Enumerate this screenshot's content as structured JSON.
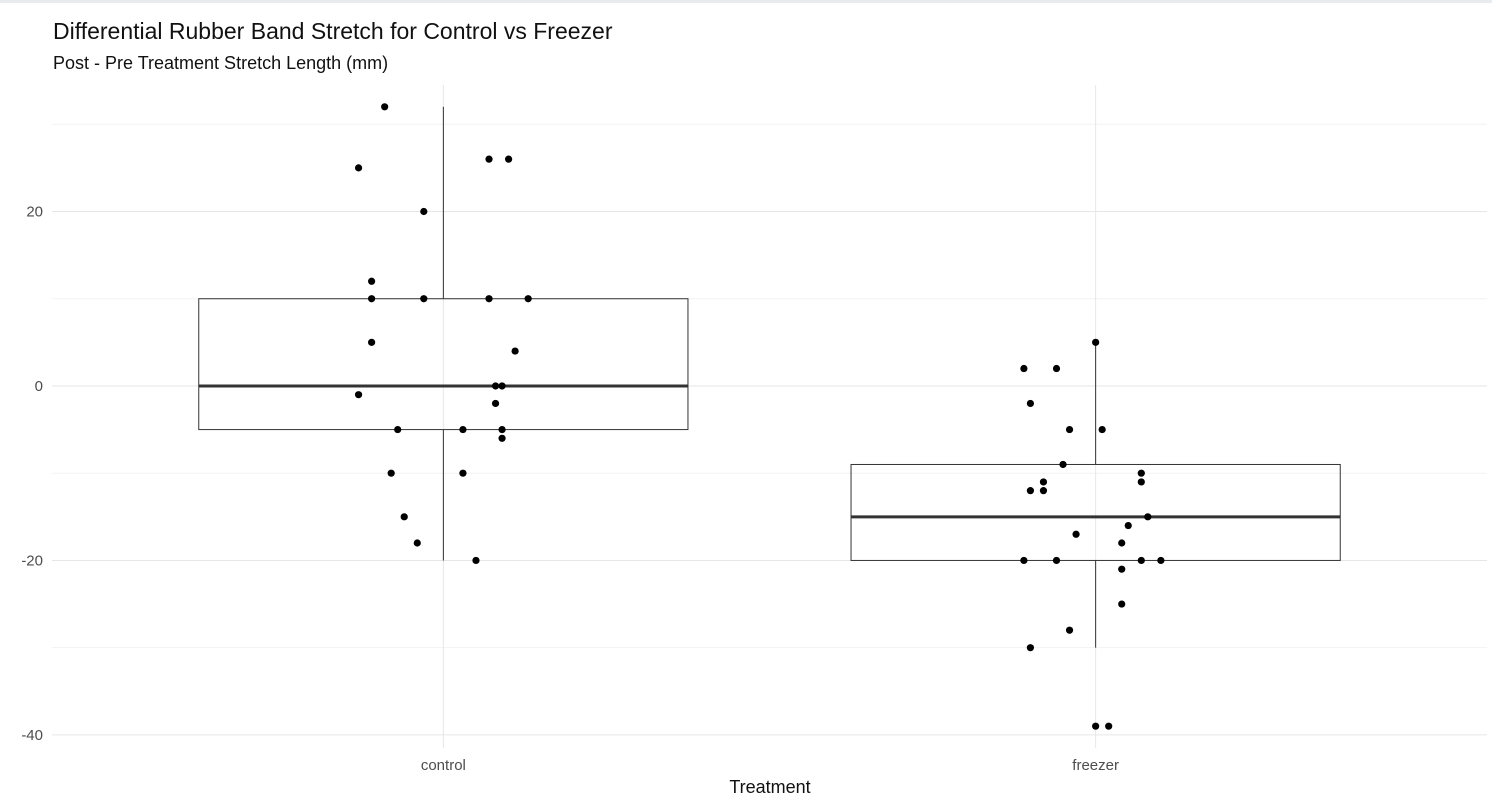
{
  "chart_data": {
    "type": "box",
    "title": "Differential Rubber Band Stretch for Control vs Freezer",
    "subtitle": "Post - Pre Treatment Stretch Length (mm)",
    "xlabel": "Treatment",
    "ylabel": "",
    "categories": [
      "control",
      "freezer"
    ],
    "ylim": [
      -41.5,
      34.5
    ],
    "yticks": [
      -40,
      -20,
      0,
      20
    ],
    "grid": true,
    "legend": "none",
    "boxes": [
      {
        "category": "control",
        "lower_whisker": -20,
        "q1": -5,
        "median": 0,
        "q3": 10,
        "upper_whisker": 32
      },
      {
        "category": "freezer",
        "lower_whisker": -30,
        "q1": -20,
        "median": -15,
        "q3": -9,
        "upper_whisker": 5
      }
    ],
    "points": [
      {
        "category": "control",
        "jitter": -0.09,
        "y": 32
      },
      {
        "category": "control",
        "jitter": -0.13,
        "y": 25
      },
      {
        "category": "control",
        "jitter": 0.07,
        "y": 26
      },
      {
        "category": "control",
        "jitter": 0.1,
        "y": 26
      },
      {
        "category": "control",
        "jitter": -0.03,
        "y": 20
      },
      {
        "category": "control",
        "jitter": -0.11,
        "y": 12
      },
      {
        "category": "control",
        "jitter": -0.11,
        "y": 10
      },
      {
        "category": "control",
        "jitter": -0.03,
        "y": 10
      },
      {
        "category": "control",
        "jitter": 0.07,
        "y": 10
      },
      {
        "category": "control",
        "jitter": 0.13,
        "y": 10
      },
      {
        "category": "control",
        "jitter": -0.11,
        "y": 5
      },
      {
        "category": "control",
        "jitter": 0.11,
        "y": 4
      },
      {
        "category": "control",
        "jitter": 0.08,
        "y": 0
      },
      {
        "category": "control",
        "jitter": 0.09,
        "y": 0
      },
      {
        "category": "control",
        "jitter": -0.13,
        "y": -1
      },
      {
        "category": "control",
        "jitter": 0.08,
        "y": -2
      },
      {
        "category": "control",
        "jitter": -0.07,
        "y": -5
      },
      {
        "category": "control",
        "jitter": 0.03,
        "y": -5
      },
      {
        "category": "control",
        "jitter": 0.09,
        "y": -5
      },
      {
        "category": "control",
        "jitter": 0.09,
        "y": -6
      },
      {
        "category": "control",
        "jitter": -0.08,
        "y": -10
      },
      {
        "category": "control",
        "jitter": 0.03,
        "y": -10
      },
      {
        "category": "control",
        "jitter": -0.06,
        "y": -15
      },
      {
        "category": "control",
        "jitter": -0.04,
        "y": -18
      },
      {
        "category": "control",
        "jitter": 0.05,
        "y": -20
      },
      {
        "category": "freezer",
        "jitter": -0.11,
        "y": 2
      },
      {
        "category": "freezer",
        "jitter": -0.06,
        "y": 2
      },
      {
        "category": "freezer",
        "jitter": 0.0,
        "y": 5
      },
      {
        "category": "freezer",
        "jitter": -0.1,
        "y": -2
      },
      {
        "category": "freezer",
        "jitter": -0.04,
        "y": -5
      },
      {
        "category": "freezer",
        "jitter": 0.01,
        "y": -5
      },
      {
        "category": "freezer",
        "jitter": -0.05,
        "y": -9
      },
      {
        "category": "freezer",
        "jitter": 0.07,
        "y": -10
      },
      {
        "category": "freezer",
        "jitter": -0.08,
        "y": -11
      },
      {
        "category": "freezer",
        "jitter": 0.07,
        "y": -11
      },
      {
        "category": "freezer",
        "jitter": -0.1,
        "y": -12
      },
      {
        "category": "freezer",
        "jitter": -0.08,
        "y": -12
      },
      {
        "category": "freezer",
        "jitter": 0.08,
        "y": -15
      },
      {
        "category": "freezer",
        "jitter": 0.05,
        "y": -16
      },
      {
        "category": "freezer",
        "jitter": -0.03,
        "y": -17
      },
      {
        "category": "freezer",
        "jitter": 0.04,
        "y": -18
      },
      {
        "category": "freezer",
        "jitter": -0.11,
        "y": -20
      },
      {
        "category": "freezer",
        "jitter": -0.06,
        "y": -20
      },
      {
        "category": "freezer",
        "jitter": 0.07,
        "y": -20
      },
      {
        "category": "freezer",
        "jitter": 0.1,
        "y": -20
      },
      {
        "category": "freezer",
        "jitter": 0.04,
        "y": -21
      },
      {
        "category": "freezer",
        "jitter": 0.04,
        "y": -25
      },
      {
        "category": "freezer",
        "jitter": -0.04,
        "y": -28
      },
      {
        "category": "freezer",
        "jitter": -0.1,
        "y": -30
      },
      {
        "category": "freezer",
        "jitter": 0.0,
        "y": -39
      },
      {
        "category": "freezer",
        "jitter": 0.02,
        "y": -39
      }
    ]
  }
}
